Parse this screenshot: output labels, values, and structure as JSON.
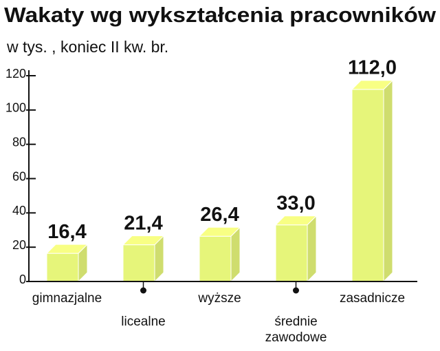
{
  "chart_data": {
    "type": "bar3d",
    "title": "Wakaty wg wykształcenia pracowników",
    "subtitle": "w tys. , koniec II kw. br.",
    "categories": [
      "gimnazjalne",
      "licealne",
      "wyższe",
      "średnie zawodowe",
      "zasadnicze"
    ],
    "values": [
      16.4,
      21.4,
      26.4,
      33.0,
      112.0
    ],
    "value_labels": [
      "16,4",
      "21,4",
      "26,4",
      "33,0",
      "112,0"
    ],
    "color": "#e6f57a",
    "ylim": [
      0,
      120
    ],
    "yticks": [
      0,
      20,
      40,
      60,
      80,
      100,
      120
    ]
  }
}
